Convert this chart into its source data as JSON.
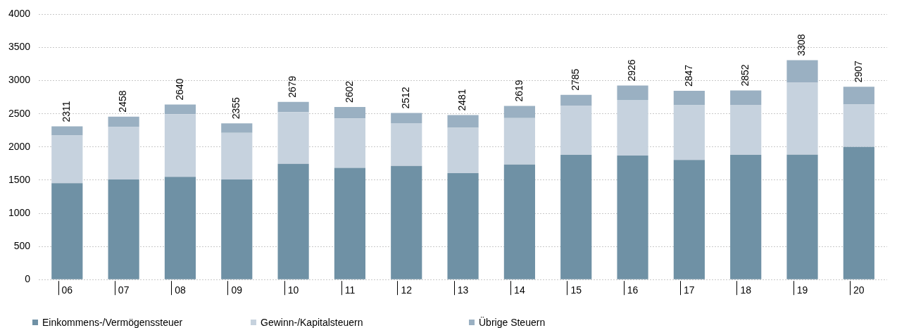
{
  "chart_data": {
    "type": "bar",
    "stacked": true,
    "categories": [
      "06",
      "07",
      "08",
      "09",
      "10",
      "11",
      "12",
      "13",
      "14",
      "15",
      "16",
      "17",
      "18",
      "19",
      "20"
    ],
    "series": [
      {
        "name": "Einkommens-/Vermögenssteuer",
        "color": "#6f91a5",
        "values": [
          1455,
          1510,
          1550,
          1510,
          1745,
          1685,
          1715,
          1605,
          1735,
          1880,
          1870,
          1805,
          1880,
          1885,
          2000
        ]
      },
      {
        "name": "Gewinn-/Kapitalsteuern",
        "color": "#c6d2de",
        "values": [
          719,
          790,
          945,
          703,
          781,
          745,
          645,
          685,
          700,
          740,
          840,
          825,
          755,
          1085,
          640
        ]
      },
      {
        "name": "Übrige Steuern",
        "color": "#9ab0c2",
        "values": [
          137,
          158,
          145,
          142,
          153,
          172,
          152,
          191,
          184,
          165,
          216,
          217,
          217,
          338,
          267
        ]
      }
    ],
    "totals": [
      "2311",
      "2458",
      "2640",
      "2355",
      "2679",
      "2602",
      "2512",
      "2481",
      "2619",
      "2785",
      "2926",
      "2847",
      "2852",
      "3308",
      "2907"
    ],
    "ylim": [
      0,
      4000
    ],
    "yticks": [
      0,
      500,
      1000,
      1500,
      2000,
      2500,
      3000,
      3500,
      4000
    ],
    "grid": "y",
    "legend": "bottom left"
  }
}
